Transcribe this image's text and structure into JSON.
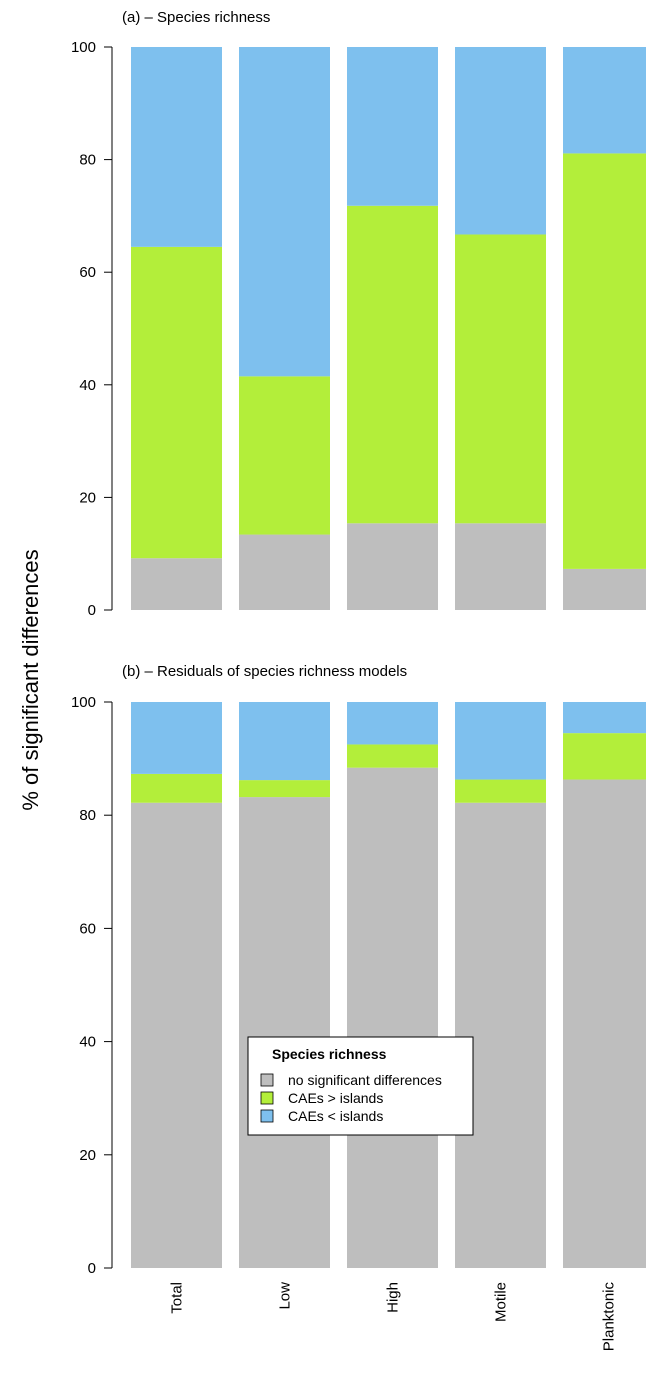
{
  "ylabel": "% of significant differences",
  "categories": [
    "Total",
    "Low",
    "High",
    "Motile",
    "Planktonic"
  ],
  "colors": {
    "no_sig": "#BEBEBE",
    "greater": "#B3EE3A",
    "less": "#7EC0EE"
  },
  "legend": {
    "title": "Species richness",
    "placement": "inside panel (b), lower-left",
    "items": [
      {
        "label": "no significant differences",
        "color": "#BEBEBE"
      },
      {
        "label": "CAEs > islands",
        "color": "#B3EE3A"
      },
      {
        "label": "CAEs < islands",
        "color": "#7EC0EE"
      }
    ]
  },
  "chart_data": [
    {
      "type": "bar",
      "stacked": true,
      "title": "(a) – Species richness",
      "ylim": [
        0,
        100
      ],
      "yticks": [
        "0",
        "20",
        "40",
        "60",
        "80",
        "100"
      ],
      "categories": [
        "Total",
        "Low",
        "High",
        "Motile",
        "Planktonic"
      ],
      "series": [
        {
          "name": "no significant differences",
          "values": [
            9.2,
            13.4,
            15.4,
            15.4,
            7.3
          ]
        },
        {
          "name": "CAEs > islands",
          "values": [
            55.3,
            28.1,
            56.4,
            51.3,
            73.8
          ]
        },
        {
          "name": "CAEs < islands",
          "values": [
            35.5,
            58.5,
            28.2,
            33.3,
            18.9
          ]
        }
      ]
    },
    {
      "type": "bar",
      "stacked": true,
      "title": "(b) – Residuals of species richness models",
      "ylim": [
        0,
        100
      ],
      "yticks": [
        "0",
        "20",
        "40",
        "60",
        "80",
        "100"
      ],
      "categories": [
        "Total",
        "Low",
        "High",
        "Motile",
        "Planktonic"
      ],
      "series": [
        {
          "name": "no significant differences",
          "values": [
            82.2,
            83.2,
            88.4,
            82.2,
            86.3
          ]
        },
        {
          "name": "CAEs > islands",
          "values": [
            5.1,
            3.0,
            4.1,
            4.1,
            8.2
          ]
        },
        {
          "name": "CAEs < islands",
          "values": [
            12.7,
            13.8,
            7.5,
            13.7,
            5.5
          ]
        }
      ]
    }
  ]
}
